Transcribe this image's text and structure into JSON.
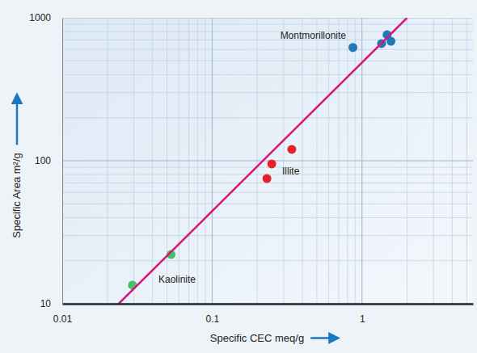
{
  "chart_data": {
    "type": "scatter",
    "log": true,
    "grid": true,
    "xlabel": "Specific CEC meq/g",
    "ylabel": "Specific Area m²/g",
    "xlim": [
      0.01,
      5.5
    ],
    "ylim": [
      10,
      1000
    ],
    "xticks": [
      0.01,
      0.1,
      1
    ],
    "yticks": [
      10,
      100,
      1000
    ],
    "series": [
      {
        "name": "Montmorillonite",
        "type": "scatter",
        "marker": "circle",
        "color": "#1f78b8",
        "x": [
          0.87,
          1.47,
          1.35,
          1.56
        ],
        "values": [
          620,
          760,
          660,
          685
        ]
      },
      {
        "name": "Illite",
        "type": "scatter",
        "marker": "circle",
        "color": "#e8202a",
        "x": [
          0.25,
          0.232,
          0.34
        ],
        "values": [
          95,
          75,
          120
        ]
      },
      {
        "name": "Kaolinite",
        "type": "scatter",
        "marker": "circle",
        "color": "#3ec46a",
        "x": [
          0.0532,
          0.0294
        ],
        "values": [
          22.1,
          13.5
        ]
      },
      {
        "type": "line",
        "line_style": "solid",
        "color": "#d4187c",
        "x": [
          0.0238,
          2.0
        ],
        "values": [
          10,
          1000
        ]
      }
    ]
  }
}
